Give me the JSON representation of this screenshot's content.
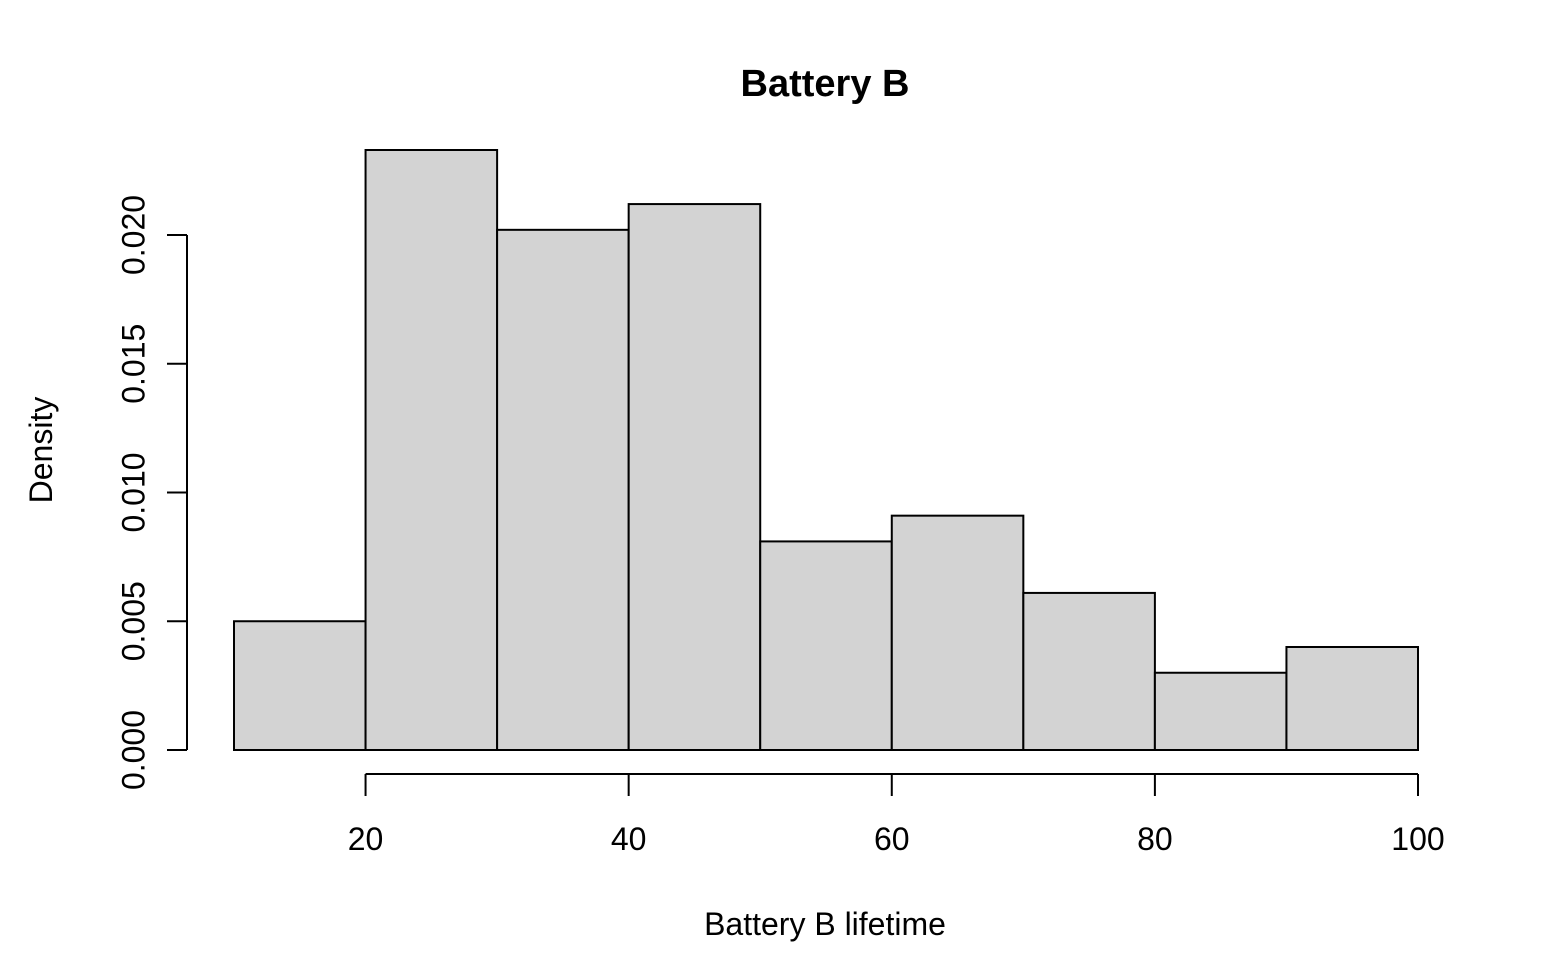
{
  "chart_data": {
    "type": "bar",
    "title": "Battery B",
    "xlabel": "Battery B lifetime",
    "ylabel": "Density",
    "bins": [
      {
        "x0": 10,
        "x1": 20,
        "density": 0.005
      },
      {
        "x0": 20,
        "x1": 30,
        "density": 0.0233
      },
      {
        "x0": 30,
        "x1": 40,
        "density": 0.0202
      },
      {
        "x0": 40,
        "x1": 50,
        "density": 0.0212
      },
      {
        "x0": 50,
        "x1": 60,
        "density": 0.0081
      },
      {
        "x0": 60,
        "x1": 70,
        "density": 0.0091
      },
      {
        "x0": 70,
        "x1": 80,
        "density": 0.0061
      },
      {
        "x0": 80,
        "x1": 90,
        "density": 0.003
      },
      {
        "x0": 90,
        "x1": 100,
        "density": 0.004
      }
    ],
    "x_ticks": [
      20,
      40,
      60,
      80,
      100
    ],
    "x_tick_labels": [
      "20",
      "40",
      "60",
      "80",
      "100"
    ],
    "y_ticks": [
      0,
      0.005,
      0.01,
      0.015,
      0.02
    ],
    "y_tick_labels": [
      "0.000",
      "0.005",
      "0.010",
      "0.015",
      "0.020"
    ],
    "xlim": [
      10,
      100
    ],
    "ylim": [
      0,
      0.0233
    ],
    "grid": false,
    "legend": "none",
    "colors": {
      "bar_fill": "#d3d3d3",
      "bar_stroke": "#000000",
      "axis": "#000000"
    }
  }
}
